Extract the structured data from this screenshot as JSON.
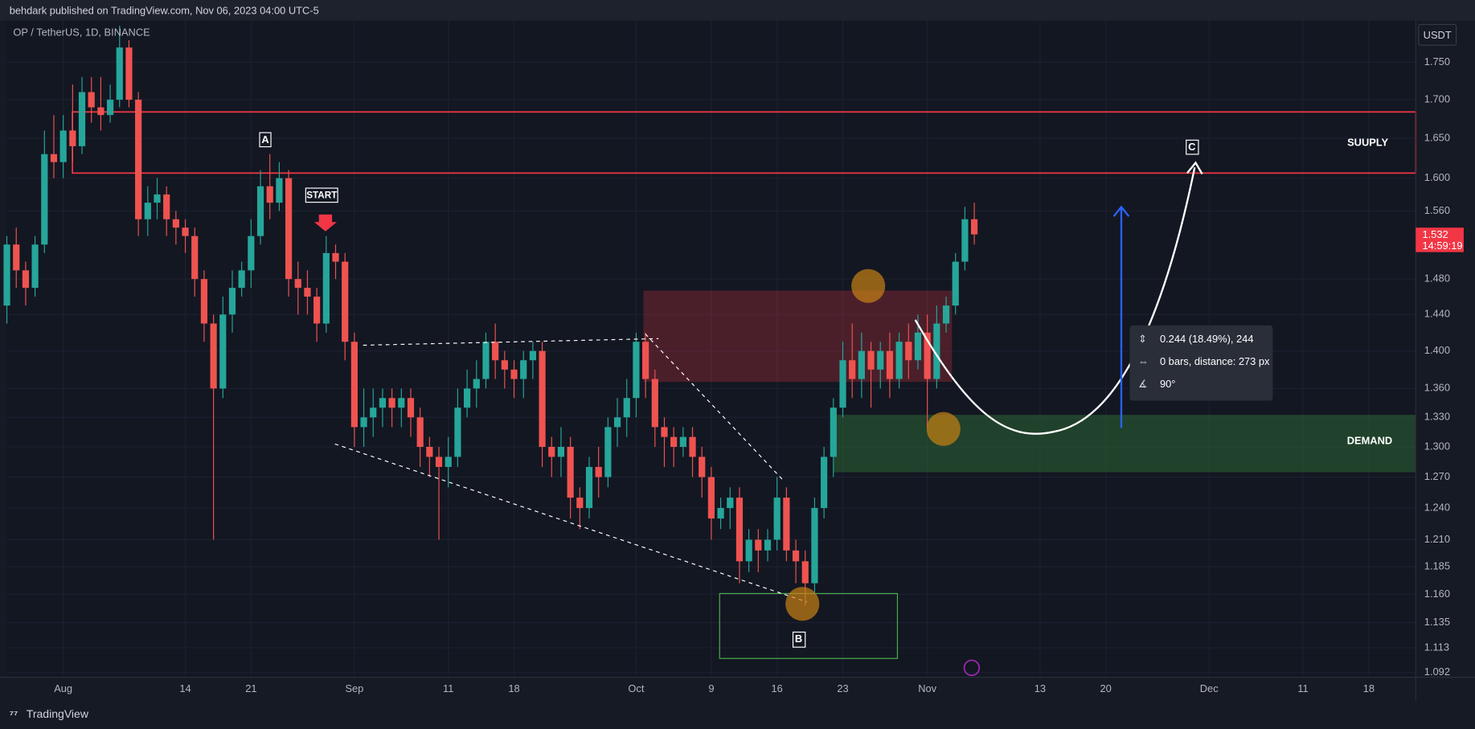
{
  "header": {
    "text": "behdark published on TradingView.com, Nov 06, 2023 04:00 UTC-5"
  },
  "footer": {
    "brand": "TradingView"
  },
  "chart_data": {
    "type": "candlestick",
    "symbol": "OP / TetherUS, 1D, BINANCE",
    "currency": "USDT",
    "countdown": "14:59:19",
    "up_color": "#26a69a",
    "down_color": "#ef5350",
    "log_scale": true,
    "grid": true,
    "x": [
      "2023-07-26",
      "2023-07-27",
      "2023-07-28",
      "2023-07-29",
      "2023-07-30",
      "2023-07-31",
      "2023-08-01",
      "2023-08-02",
      "2023-08-03",
      "2023-08-04",
      "2023-08-05",
      "2023-08-06",
      "2023-08-07",
      "2023-08-08",
      "2023-08-09",
      "2023-08-10",
      "2023-08-11",
      "2023-08-12",
      "2023-08-13",
      "2023-08-14",
      "2023-08-15",
      "2023-08-16",
      "2023-08-17",
      "2023-08-18",
      "2023-08-19",
      "2023-08-20",
      "2023-08-21",
      "2023-08-22",
      "2023-08-23",
      "2023-08-24",
      "2023-08-25",
      "2023-08-26",
      "2023-08-27",
      "2023-08-28",
      "2023-08-29",
      "2023-08-30",
      "2023-08-31",
      "2023-09-01",
      "2023-09-02",
      "2023-09-03",
      "2023-09-04",
      "2023-09-05",
      "2023-09-06",
      "2023-09-07",
      "2023-09-08",
      "2023-09-09",
      "2023-09-10",
      "2023-09-11",
      "2023-09-12",
      "2023-09-13",
      "2023-09-14",
      "2023-09-15",
      "2023-09-16",
      "2023-09-17",
      "2023-09-18",
      "2023-09-19",
      "2023-09-20",
      "2023-09-21",
      "2023-09-22",
      "2023-09-23",
      "2023-09-24",
      "2023-09-25",
      "2023-09-26",
      "2023-09-27",
      "2023-09-28",
      "2023-09-29",
      "2023-09-30",
      "2023-10-01",
      "2023-10-02",
      "2023-10-03",
      "2023-10-04",
      "2023-10-05",
      "2023-10-06",
      "2023-10-07",
      "2023-10-08",
      "2023-10-09",
      "2023-10-10",
      "2023-10-11",
      "2023-10-12",
      "2023-10-13",
      "2023-10-14",
      "2023-10-15",
      "2023-10-16",
      "2023-10-17",
      "2023-10-18",
      "2023-10-19",
      "2023-10-20",
      "2023-10-21",
      "2023-10-22",
      "2023-10-23",
      "2023-10-24",
      "2023-10-25",
      "2023-10-26",
      "2023-10-27",
      "2023-10-28",
      "2023-10-29",
      "2023-10-30",
      "2023-10-31",
      "2023-11-01",
      "2023-11-02",
      "2023-11-03",
      "2023-11-04",
      "2023-11-05",
      "2023-11-06"
    ],
    "open": [
      1.45,
      1.52,
      1.49,
      1.47,
      1.52,
      1.63,
      1.62,
      1.66,
      1.64,
      1.71,
      1.69,
      1.68,
      1.7,
      1.77,
      1.7,
      1.55,
      1.57,
      1.58,
      1.55,
      1.54,
      1.53,
      1.48,
      1.43,
      1.36,
      1.44,
      1.47,
      1.49,
      1.53,
      1.59,
      1.57,
      1.6,
      1.48,
      1.47,
      1.46,
      1.43,
      1.51,
      1.5,
      1.41,
      1.32,
      1.33,
      1.34,
      1.35,
      1.34,
      1.35,
      1.33,
      1.3,
      1.29,
      1.28,
      1.29,
      1.34,
      1.36,
      1.37,
      1.41,
      1.39,
      1.38,
      1.37,
      1.39,
      1.4,
      1.3,
      1.29,
      1.3,
      1.25,
      1.24,
      1.28,
      1.27,
      1.32,
      1.33,
      1.35,
      1.41,
      1.37,
      1.32,
      1.31,
      1.3,
      1.31,
      1.29,
      1.27,
      1.23,
      1.24,
      1.25,
      1.19,
      1.21,
      1.2,
      1.21,
      1.25,
      1.2,
      1.19,
      1.17,
      1.24,
      1.29,
      1.34,
      1.39,
      1.37,
      1.4,
      1.38,
      1.4,
      1.37,
      1.41,
      1.39,
      1.42,
      1.37,
      1.43,
      1.45,
      1.5,
      1.55
    ],
    "high": [
      1.53,
      1.54,
      1.5,
      1.53,
      1.66,
      1.68,
      1.68,
      1.72,
      1.73,
      1.73,
      1.73,
      1.72,
      1.8,
      1.78,
      1.71,
      1.59,
      1.6,
      1.59,
      1.56,
      1.55,
      1.54,
      1.49,
      1.44,
      1.46,
      1.49,
      1.5,
      1.55,
      1.61,
      1.63,
      1.62,
      1.61,
      1.5,
      1.49,
      1.47,
      1.53,
      1.52,
      1.51,
      1.42,
      1.36,
      1.36,
      1.36,
      1.36,
      1.36,
      1.36,
      1.34,
      1.31,
      1.3,
      1.31,
      1.36,
      1.38,
      1.39,
      1.42,
      1.43,
      1.4,
      1.39,
      1.4,
      1.41,
      1.41,
      1.31,
      1.32,
      1.31,
      1.26,
      1.29,
      1.3,
      1.33,
      1.35,
      1.37,
      1.42,
      1.42,
      1.38,
      1.33,
      1.32,
      1.32,
      1.32,
      1.3,
      1.28,
      1.25,
      1.26,
      1.26,
      1.22,
      1.22,
      1.22,
      1.27,
      1.26,
      1.21,
      1.2,
      1.25,
      1.3,
      1.35,
      1.41,
      1.43,
      1.42,
      1.41,
      1.41,
      1.42,
      1.42,
      1.43,
      1.44,
      1.44,
      1.45,
      1.46,
      1.51,
      1.565,
      1.57
    ],
    "low": [
      1.43,
      1.47,
      1.45,
      1.46,
      1.51,
      1.6,
      1.6,
      1.62,
      1.63,
      1.67,
      1.66,
      1.67,
      1.69,
      1.69,
      1.53,
      1.53,
      1.55,
      1.53,
      1.52,
      1.51,
      1.46,
      1.41,
      1.21,
      1.35,
      1.42,
      1.46,
      1.47,
      1.52,
      1.55,
      1.56,
      1.46,
      1.44,
      1.44,
      1.41,
      1.42,
      1.48,
      1.39,
      1.3,
      1.3,
      1.31,
      1.32,
      1.32,
      1.32,
      1.31,
      1.28,
      1.27,
      1.21,
      1.26,
      1.28,
      1.33,
      1.34,
      1.36,
      1.37,
      1.36,
      1.35,
      1.35,
      1.37,
      1.28,
      1.27,
      1.27,
      1.23,
      1.22,
      1.23,
      1.25,
      1.26,
      1.3,
      1.31,
      1.33,
      1.35,
      1.3,
      1.28,
      1.28,
      1.29,
      1.27,
      1.25,
      1.21,
      1.22,
      1.22,
      1.17,
      1.18,
      1.18,
      1.19,
      1.2,
      1.19,
      1.17,
      1.15,
      1.16,
      1.23,
      1.27,
      1.33,
      1.35,
      1.35,
      1.34,
      1.36,
      1.35,
      1.36,
      1.37,
      1.38,
      1.32,
      1.36,
      1.42,
      1.44,
      1.49,
      1.52
    ],
    "close": [
      1.52,
      1.49,
      1.47,
      1.52,
      1.63,
      1.62,
      1.66,
      1.64,
      1.71,
      1.69,
      1.68,
      1.7,
      1.77,
      1.7,
      1.55,
      1.57,
      1.58,
      1.55,
      1.54,
      1.53,
      1.48,
      1.43,
      1.36,
      1.44,
      1.47,
      1.49,
      1.53,
      1.59,
      1.57,
      1.6,
      1.48,
      1.47,
      1.46,
      1.43,
      1.51,
      1.5,
      1.41,
      1.32,
      1.33,
      1.34,
      1.35,
      1.34,
      1.35,
      1.33,
      1.3,
      1.29,
      1.28,
      1.29,
      1.34,
      1.36,
      1.37,
      1.41,
      1.39,
      1.38,
      1.37,
      1.39,
      1.4,
      1.3,
      1.29,
      1.3,
      1.25,
      1.24,
      1.28,
      1.27,
      1.32,
      1.33,
      1.35,
      1.41,
      1.37,
      1.32,
      1.31,
      1.3,
      1.31,
      1.29,
      1.27,
      1.23,
      1.24,
      1.25,
      1.19,
      1.21,
      1.2,
      1.21,
      1.25,
      1.2,
      1.19,
      1.17,
      1.24,
      1.29,
      1.34,
      1.39,
      1.37,
      1.4,
      1.38,
      1.4,
      1.37,
      1.41,
      1.39,
      1.42,
      1.37,
      1.43,
      1.45,
      1.5,
      1.55,
      1.532
    ],
    "xlim": [
      "2023-07-26",
      "2023-12-23"
    ],
    "xticks": [
      {
        "value": "2023-08-01",
        "label": "Aug"
      },
      {
        "value": "2023-08-14",
        "label": "14"
      },
      {
        "value": "2023-08-21",
        "label": "21"
      },
      {
        "value": "2023-09-01",
        "label": "Sep"
      },
      {
        "value": "2023-09-11",
        "label": "11"
      },
      {
        "value": "2023-09-18",
        "label": "18"
      },
      {
        "value": "2023-10-01",
        "label": "Oct"
      },
      {
        "value": "2023-10-09",
        "label": "9"
      },
      {
        "value": "2023-10-16",
        "label": "16"
      },
      {
        "value": "2023-10-23",
        "label": "23"
      },
      {
        "value": "2023-11-01",
        "label": "Nov"
      },
      {
        "value": "2023-11-13",
        "label": "13"
      },
      {
        "value": "2023-11-20",
        "label": "20"
      },
      {
        "value": "2023-12-01",
        "label": "Dec"
      },
      {
        "value": "2023-12-11",
        "label": "11"
      },
      {
        "value": "2023-12-18",
        "label": "18"
      }
    ],
    "ylim": [
      1.088,
      1.807
    ],
    "yticks": [
      {
        "value": 1.75,
        "label": "1.750"
      },
      {
        "value": 1.7,
        "label": "1.700"
      },
      {
        "value": 1.65,
        "label": "1.650"
      },
      {
        "value": 1.6,
        "label": "1.600"
      },
      {
        "value": 1.56,
        "label": "1.560"
      },
      {
        "value": 1.48,
        "label": "1.480"
      },
      {
        "value": 1.44,
        "label": "1.440"
      },
      {
        "value": 1.4,
        "label": "1.400"
      },
      {
        "value": 1.36,
        "label": "1.360"
      },
      {
        "value": 1.33,
        "label": "1.330"
      },
      {
        "value": 1.3,
        "label": "1.300"
      },
      {
        "value": 1.27,
        "label": "1.270"
      },
      {
        "value": 1.24,
        "label": "1.240"
      },
      {
        "value": 1.21,
        "label": "1.210"
      },
      1.185,
      {
        "value": 1.16,
        "label": "1.160"
      },
      1.135,
      1.113,
      1.092
    ],
    "annotations": {
      "a": "A",
      "start": "START",
      "b": "B",
      "c": "C",
      "supply": "SUUPLY",
      "demand": "DEMAND",
      "measure_price": "0.244 (18.49%), 244",
      "measure_bars": "0 bars, distance: 273 px",
      "measure_angle": "90°"
    }
  }
}
